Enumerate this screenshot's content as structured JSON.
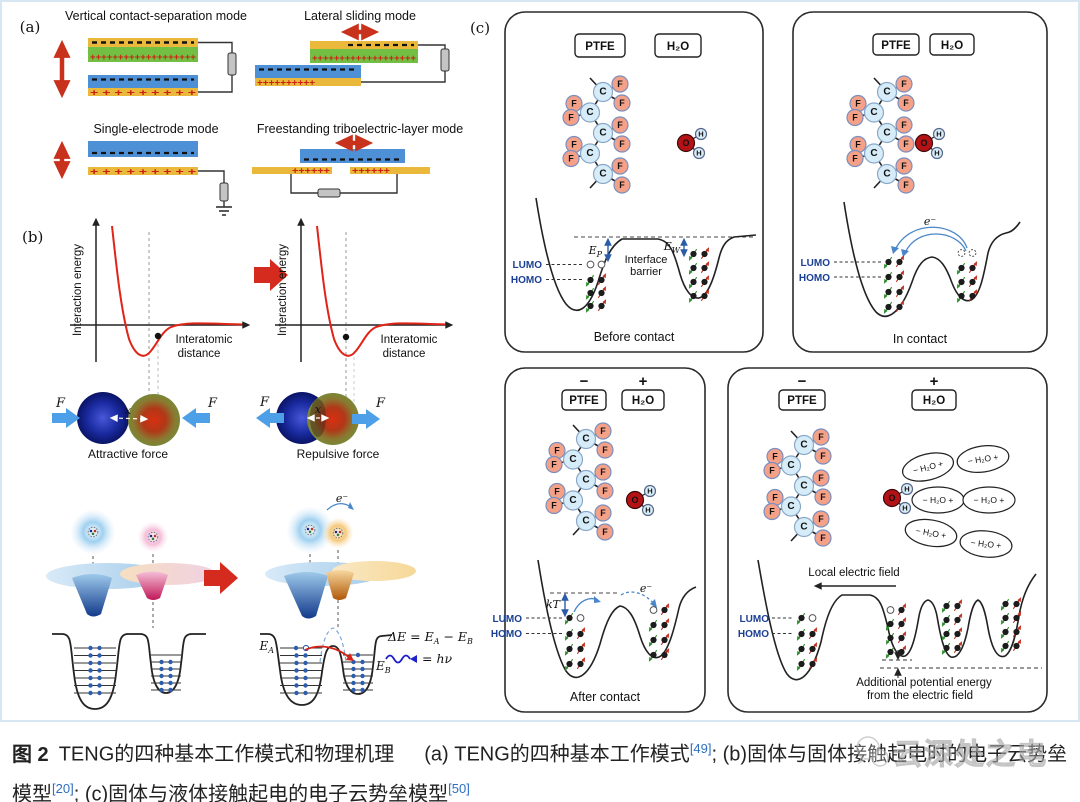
{
  "panel_a": {
    "label": "(a)",
    "mode1_title": "Vertical contact-separation mode",
    "mode2_title": "Lateral sliding mode",
    "mode3_title": "Single-electrode mode",
    "mode4_title": "Freestanding triboelectric-layer mode",
    "charges": {
      "plus_dense": "+++++++++++++++++++",
      "plus_spaced": "+ + + + + + + + +",
      "plus_medium": "++++++++++",
      "plus_short": "++++++"
    }
  },
  "panel_b": {
    "label": "(b)",
    "ylabel": "Interaction energy",
    "xlabel1": "Interatomic",
    "xlabel2": "distance",
    "force": "F",
    "x_sym": "x",
    "attractive": "Attractive force",
    "repulsive": "Repulsive force",
    "electron": "e⁻",
    "E": "E",
    "sub_A": "A",
    "sub_B": "B",
    "eq1_p1": "ΔE = E",
    "eq1_p2": " − E",
    "eq2": "= hν"
  },
  "panel_c": {
    "label": "(c)",
    "ptfe": "PTFE",
    "h2o": "H₂O",
    "minus": "−",
    "plus": "+",
    "lumo": "LUMO",
    "homo": "HOMO",
    "electron": "e⁻",
    "interface1": "Interface",
    "interface2": "barrier",
    "E": "E",
    "sub_P": "P",
    "sub_W": "W",
    "kT": "kT",
    "q1_caption": "Before contact",
    "q2_caption": "In contact",
    "q3_caption": "After contact",
    "local_field": "Local electric field",
    "h2o_polar": "− H₂O +",
    "note1": "Additional potential energy",
    "note2": "from the electric field",
    "atoms": {
      "C": "C",
      "F": "F",
      "O": "O",
      "H": "H"
    }
  },
  "caption": {
    "fig_label": "图 2",
    "title": "TENG的四种基本工作模式和物理机理",
    "part_a": "(a) TENG的四种基本工作模式",
    "ref_a": "[49]",
    "sep1": "; ",
    "part_b": "(b)固体与固体接触起电时的电子云势垒模型",
    "ref_b": "[20]",
    "sep2": "; ",
    "part_c": "(c)固体与液体接触起电的电子云势垒模型",
    "ref_c": "[50]"
  },
  "watermark": {
    "text": "云深处之电"
  }
}
